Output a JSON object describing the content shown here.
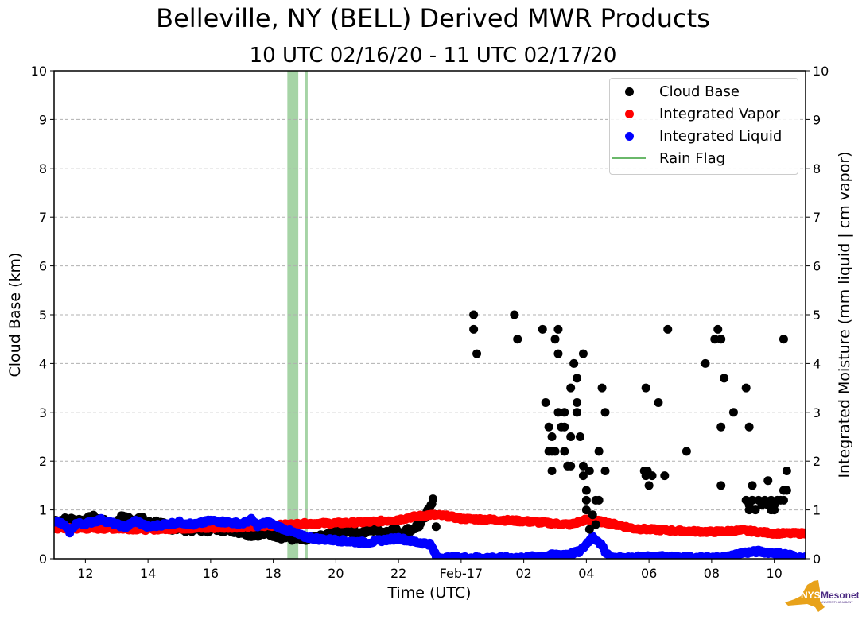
{
  "chart_data": {
    "type": "scatter",
    "title": "Belleville, NY (BELL) Derived MWR Products",
    "subtitle": "10 UTC 02/16/20 - 11 UTC 02/17/20",
    "xlabel": "Time (UTC)",
    "ylabel_left": "Cloud Base (km)",
    "ylabel_right": "Integrated Moisture (mm liquid | cm vapor)",
    "x_unit": "hours since 00 UTC 02/16/20",
    "xlim": [
      11,
      35
    ],
    "ylim_left": [
      0,
      10
    ],
    "ylim_right": [
      0,
      10
    ],
    "x_ticks": [
      {
        "x": 12,
        "label": "12"
      },
      {
        "x": 14,
        "label": "14"
      },
      {
        "x": 16,
        "label": "16"
      },
      {
        "x": 18,
        "label": "18"
      },
      {
        "x": 20,
        "label": "20"
      },
      {
        "x": 22,
        "label": "22"
      },
      {
        "x": 24,
        "label": "Feb-17"
      },
      {
        "x": 26,
        "label": "02"
      },
      {
        "x": 28,
        "label": "04"
      },
      {
        "x": 30,
        "label": "06"
      },
      {
        "x": 32,
        "label": "08"
      },
      {
        "x": 34,
        "label": "10"
      }
    ],
    "y_ticks": [
      0,
      1,
      2,
      3,
      4,
      5,
      6,
      7,
      8,
      9,
      10
    ],
    "grid": "horizontal dashed",
    "legend_position": "top-right",
    "legend": [
      {
        "label": "Cloud Base",
        "kind": "dot",
        "color": "#000000"
      },
      {
        "label": "Integrated Vapor",
        "kind": "dot",
        "color": "#ff0000"
      },
      {
        "label": "Integrated Liquid",
        "kind": "dot",
        "color": "#0000ff"
      },
      {
        "label": "Rain Flag",
        "kind": "line",
        "color": "#6ab86a"
      }
    ],
    "rain_flag_intervals": [
      [
        18.45,
        18.8
      ],
      [
        19.0,
        19.1
      ]
    ],
    "series": [
      {
        "name": "Cloud Base",
        "color": "#000000",
        "band": [
          [
            11.0,
            0.78
          ],
          [
            11.5,
            0.8
          ],
          [
            12.0,
            0.78
          ],
          [
            12.3,
            0.85
          ],
          [
            12.6,
            0.75
          ],
          [
            13.0,
            0.7
          ],
          [
            13.2,
            0.88
          ],
          [
            13.5,
            0.78
          ],
          [
            13.7,
            0.85
          ],
          [
            14.0,
            0.72
          ],
          [
            14.3,
            0.75
          ],
          [
            14.6,
            0.65
          ],
          [
            15.0,
            0.62
          ],
          [
            15.5,
            0.6
          ],
          [
            16.0,
            0.6
          ],
          [
            16.5,
            0.62
          ],
          [
            17.0,
            0.55
          ],
          [
            17.3,
            0.5
          ],
          [
            17.6,
            0.52
          ],
          [
            18.0,
            0.5
          ],
          [
            18.3,
            0.45
          ],
          [
            18.6,
            0.42
          ],
          [
            19.0,
            0.38
          ],
          [
            19.3,
            0.4
          ],
          [
            19.6,
            0.45
          ],
          [
            20.0,
            0.55
          ],
          [
            20.4,
            0.58
          ],
          [
            20.8,
            0.52
          ],
          [
            21.2,
            0.6
          ],
          [
            21.5,
            0.55
          ],
          [
            21.8,
            0.58
          ],
          [
            22.1,
            0.55
          ],
          [
            22.4,
            0.6
          ],
          [
            22.7,
            0.7
          ],
          [
            22.9,
            0.9
          ],
          [
            23.0,
            1.1
          ],
          [
            23.1,
            1.2
          ],
          [
            23.2,
            0.6
          ]
        ],
        "points": [
          [
            24.4,
            5.0
          ],
          [
            24.4,
            4.7
          ],
          [
            24.5,
            4.2
          ],
          [
            25.7,
            5.0
          ],
          [
            25.8,
            4.5
          ],
          [
            26.6,
            4.7
          ],
          [
            27.0,
            4.5
          ],
          [
            27.1,
            4.7
          ],
          [
            27.1,
            4.2
          ],
          [
            27.6,
            4.0
          ],
          [
            27.7,
            3.7
          ],
          [
            27.9,
            4.2
          ],
          [
            27.5,
            3.5
          ],
          [
            26.7,
            3.2
          ],
          [
            27.7,
            3.2
          ],
          [
            27.1,
            3.0
          ],
          [
            27.3,
            3.0
          ],
          [
            27.7,
            3.0
          ],
          [
            28.5,
            3.5
          ],
          [
            28.6,
            3.0
          ],
          [
            26.8,
            2.7
          ],
          [
            27.2,
            2.7
          ],
          [
            27.3,
            2.7
          ],
          [
            26.9,
            2.5
          ],
          [
            27.5,
            2.5
          ],
          [
            27.8,
            2.5
          ],
          [
            26.8,
            2.2
          ],
          [
            26.9,
            2.2
          ],
          [
            27.0,
            2.2
          ],
          [
            27.3,
            2.2
          ],
          [
            28.4,
            2.2
          ],
          [
            27.4,
            1.9
          ],
          [
            27.5,
            1.9
          ],
          [
            27.9,
            1.9
          ],
          [
            28.1,
            1.8
          ],
          [
            28.6,
            1.8
          ],
          [
            26.9,
            1.8
          ],
          [
            27.9,
            1.7
          ],
          [
            28.0,
            1.4
          ],
          [
            28.0,
            1.2
          ],
          [
            28.3,
            1.2
          ],
          [
            28.4,
            1.2
          ],
          [
            28.0,
            1.0
          ],
          [
            28.2,
            0.9
          ],
          [
            28.1,
            0.6
          ],
          [
            28.3,
            0.7
          ],
          [
            29.9,
            3.5
          ],
          [
            30.3,
            3.2
          ],
          [
            30.6,
            4.7
          ],
          [
            31.2,
            2.2
          ],
          [
            31.8,
            4.0
          ],
          [
            32.2,
            4.7
          ],
          [
            32.1,
            4.5
          ],
          [
            32.3,
            4.5
          ],
          [
            32.4,
            3.7
          ],
          [
            32.3,
            2.7
          ],
          [
            32.7,
            3.0
          ],
          [
            33.1,
            3.5
          ],
          [
            33.2,
            2.7
          ],
          [
            34.3,
            4.5
          ],
          [
            29.85,
            1.8
          ],
          [
            29.95,
            1.8
          ],
          [
            29.9,
            1.7
          ],
          [
            30.1,
            1.7
          ],
          [
            30.5,
            1.7
          ],
          [
            30.0,
            1.5
          ],
          [
            32.3,
            1.5
          ],
          [
            33.3,
            1.5
          ],
          [
            33.8,
            1.6
          ],
          [
            34.4,
            1.8
          ],
          [
            34.3,
            1.4
          ],
          [
            34.4,
            1.4
          ],
          [
            33.1,
            1.2
          ],
          [
            33.3,
            1.2
          ],
          [
            33.5,
            1.2
          ],
          [
            33.7,
            1.2
          ],
          [
            33.9,
            1.2
          ],
          [
            34.1,
            1.2
          ],
          [
            34.2,
            1.2
          ],
          [
            34.3,
            1.2
          ],
          [
            33.2,
            1.1
          ],
          [
            33.6,
            1.1
          ],
          [
            33.8,
            1.1
          ],
          [
            34.0,
            1.1
          ],
          [
            33.2,
            1.0
          ],
          [
            33.4,
            1.0
          ],
          [
            33.9,
            1.0
          ],
          [
            34.0,
            1.0
          ]
        ]
      },
      {
        "name": "Integrated Vapor",
        "color": "#ff0000",
        "points": [
          [
            11.0,
            0.62
          ],
          [
            12.0,
            0.62
          ],
          [
            13.0,
            0.62
          ],
          [
            14.0,
            0.6
          ],
          [
            15.0,
            0.62
          ],
          [
            16.0,
            0.63
          ],
          [
            17.0,
            0.65
          ],
          [
            18.0,
            0.68
          ],
          [
            18.5,
            0.7
          ],
          [
            19.0,
            0.72
          ],
          [
            20.0,
            0.73
          ],
          [
            21.0,
            0.75
          ],
          [
            22.0,
            0.8
          ],
          [
            22.5,
            0.86
          ],
          [
            23.0,
            0.9
          ],
          [
            23.5,
            0.88
          ],
          [
            24.0,
            0.82
          ],
          [
            25.0,
            0.8
          ],
          [
            26.0,
            0.77
          ],
          [
            27.0,
            0.72
          ],
          [
            27.5,
            0.7
          ],
          [
            28.0,
            0.8
          ],
          [
            28.3,
            0.78
          ],
          [
            28.8,
            0.72
          ],
          [
            29.5,
            0.62
          ],
          [
            30.0,
            0.6
          ],
          [
            31.0,
            0.57
          ],
          [
            32.0,
            0.55
          ],
          [
            33.0,
            0.58
          ],
          [
            34.0,
            0.52
          ],
          [
            35.0,
            0.52
          ]
        ]
      },
      {
        "name": "Integrated Liquid",
        "color": "#0000ff",
        "points": [
          [
            11.0,
            0.78
          ],
          [
            11.3,
            0.7
          ],
          [
            11.5,
            0.55
          ],
          [
            11.7,
            0.72
          ],
          [
            12.0,
            0.72
          ],
          [
            12.5,
            0.8
          ],
          [
            13.0,
            0.7
          ],
          [
            13.3,
            0.65
          ],
          [
            13.6,
            0.78
          ],
          [
            14.0,
            0.65
          ],
          [
            14.5,
            0.7
          ],
          [
            15.0,
            0.75
          ],
          [
            15.5,
            0.7
          ],
          [
            16.0,
            0.78
          ],
          [
            16.5,
            0.75
          ],
          [
            17.0,
            0.72
          ],
          [
            17.3,
            0.8
          ],
          [
            17.5,
            0.68
          ],
          [
            17.8,
            0.75
          ],
          [
            18.0,
            0.7
          ],
          [
            18.3,
            0.62
          ],
          [
            18.6,
            0.55
          ],
          [
            19.0,
            0.45
          ],
          [
            19.5,
            0.4
          ],
          [
            20.0,
            0.38
          ],
          [
            20.5,
            0.35
          ],
          [
            21.0,
            0.33
          ],
          [
            21.5,
            0.38
          ],
          [
            22.0,
            0.42
          ],
          [
            22.5,
            0.35
          ],
          [
            23.0,
            0.3
          ],
          [
            23.1,
            0.2
          ],
          [
            23.2,
            0.05
          ],
          [
            23.3,
            0.02
          ],
          [
            24.0,
            0.02
          ],
          [
            25.0,
            0.02
          ],
          [
            26.0,
            0.02
          ],
          [
            26.5,
            0.05
          ],
          [
            27.0,
            0.08
          ],
          [
            27.5,
            0.1
          ],
          [
            27.8,
            0.15
          ],
          [
            28.0,
            0.3
          ],
          [
            28.2,
            0.45
          ],
          [
            28.4,
            0.35
          ],
          [
            28.6,
            0.15
          ],
          [
            28.8,
            0.02
          ],
          [
            29.5,
            0.02
          ],
          [
            30.0,
            0.06
          ],
          [
            30.5,
            0.04
          ],
          [
            31.0,
            0.02
          ],
          [
            32.0,
            0.02
          ],
          [
            32.5,
            0.04
          ],
          [
            33.0,
            0.12
          ],
          [
            33.5,
            0.15
          ],
          [
            34.0,
            0.12
          ],
          [
            34.5,
            0.08
          ],
          [
            34.7,
            0.02
          ],
          [
            35.0,
            0.02
          ]
        ]
      }
    ]
  },
  "logo": {
    "text": "NYS",
    "text2": "Mesonet",
    "text3": "UNIVERSITY AT ALBANY"
  }
}
